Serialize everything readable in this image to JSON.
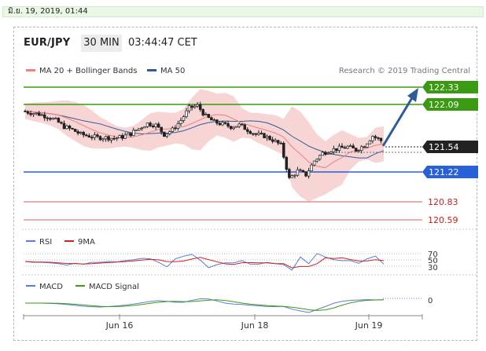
{
  "timestamp": "มิ.ย. 19, 2019, 01:44",
  "header": {
    "symbol": "EUR/JPY",
    "timeframe": "30 MIN",
    "time": "03:44:47 CET"
  },
  "legend": {
    "ma20_label": "MA 20 + Bollinger Bands",
    "ma50_label": "MA 50",
    "credit": "Research © 2019 Trading Central"
  },
  "levels": {
    "r2": "122.33",
    "r1": "122.09",
    "last": "121.54",
    "s1": "121.22",
    "s2": "120.83",
    "s3": "120.59"
  },
  "rsi": {
    "label_rsi": "RSI",
    "label_9ma": "9MA",
    "level_70": "70",
    "level_50": "50",
    "level_30": "30"
  },
  "macd": {
    "label_macd": "MACD",
    "label_signal": "MACD Signal",
    "level_0": "0"
  },
  "xaxis": [
    "Jun 16",
    "Jun 18",
    "Jun 19"
  ],
  "colors": {
    "resistance": "#3a9a12",
    "support": "#2860d8",
    "price": "#222222",
    "weak": "#d24a4a",
    "ma20": "#e98080",
    "ma50": "#2e5c9a",
    "bb_fill": "#f7cfcf",
    "arrow": "#2e5c9a"
  },
  "chart_data": {
    "type": "line",
    "series": [
      {
        "name": "EUR/JPY",
        "values": [
          121.92,
          121.9,
          121.88,
          121.85,
          121.8,
          121.72,
          121.68,
          121.62,
          121.6,
          121.58,
          121.58,
          121.57,
          121.59,
          121.63,
          121.7,
          121.76,
          121.74,
          121.62,
          121.68,
          121.8,
          121.96,
          121.99,
          121.85,
          121.78,
          121.75,
          121.72,
          121.74,
          121.68,
          121.62,
          121.6,
          121.55,
          121.48,
          121.05,
          121.15,
          121.1,
          121.28,
          121.38,
          121.42,
          121.44,
          121.46,
          121.42,
          121.48,
          121.6,
          121.54
        ]
      }
    ],
    "levels": [
      122.33,
      122.09,
      121.54,
      121.22,
      120.83,
      120.59
    ],
    "ylim": [
      120.42,
      122.42
    ]
  }
}
